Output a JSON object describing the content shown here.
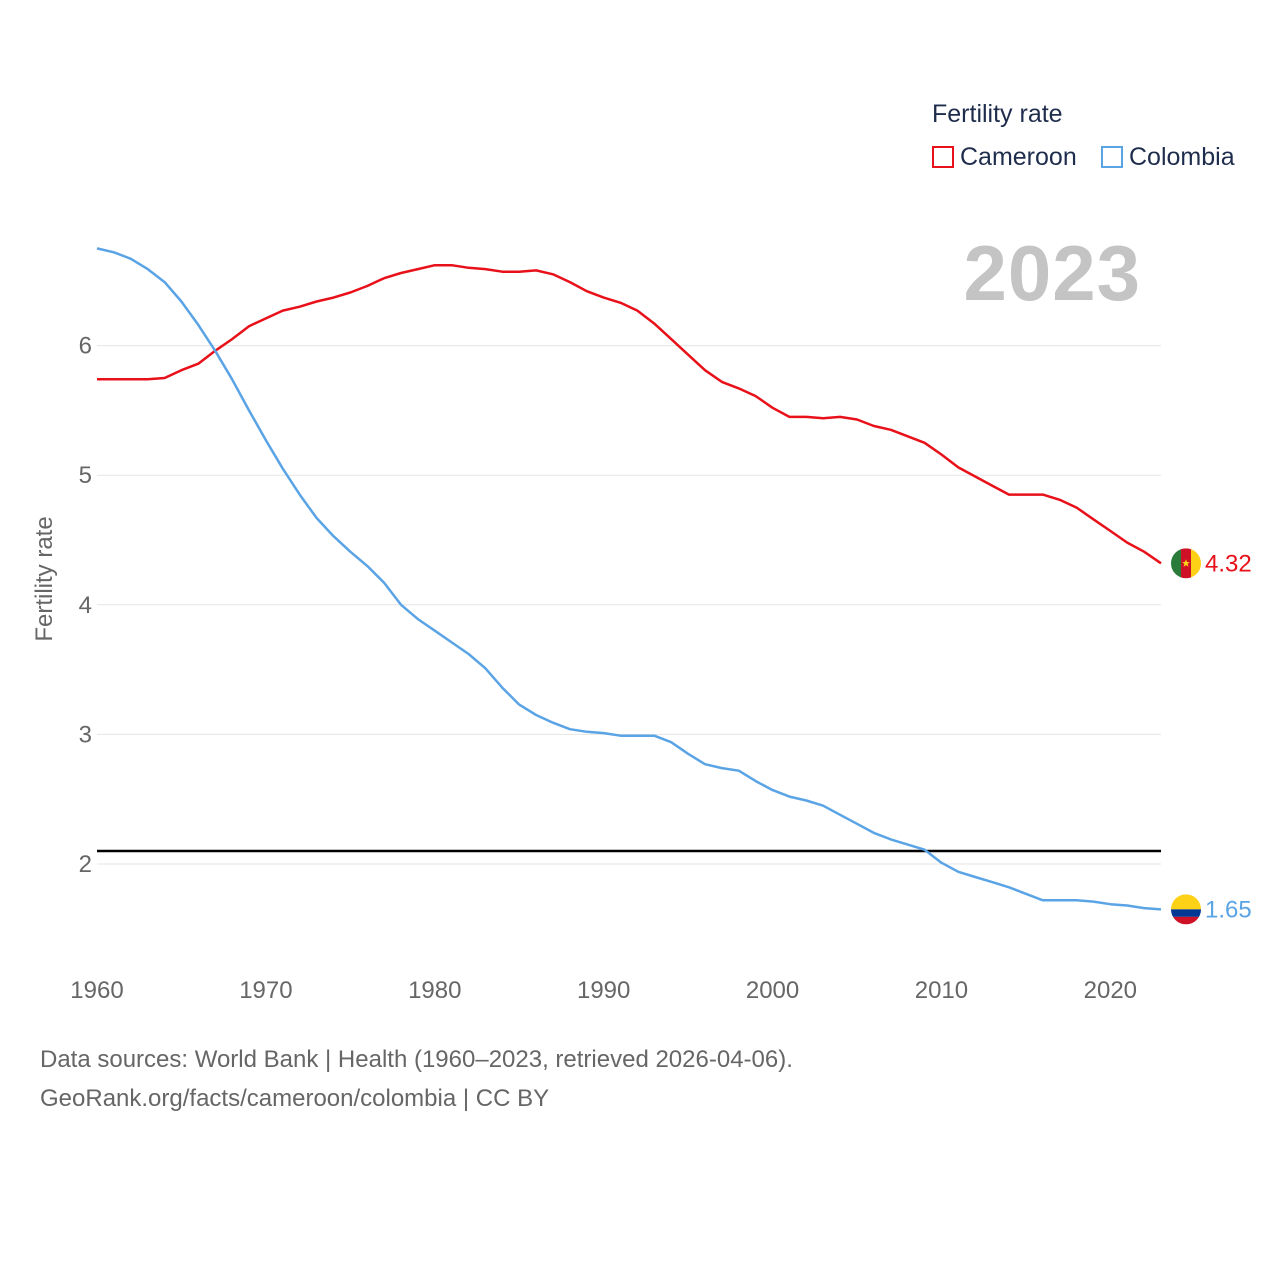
{
  "legend": {
    "title": "Fertility rate",
    "items": [
      {
        "label": "Cameroon",
        "color": "#e8111a"
      },
      {
        "label": "Colombia",
        "color": "#5aa4e6"
      }
    ]
  },
  "current_year": "2023",
  "footer": {
    "line1": "Data sources: World Bank | Health (1960–2023, retrieved 2026-04-06).",
    "line2": "GeoRank.org/facts/cameroon/colombia | CC BY"
  },
  "chart_data": {
    "type": "line",
    "ylabel": "Fertility rate",
    "xlabel": "",
    "xlim": [
      1960,
      2023
    ],
    "ylim": [
      1.4,
      6.8
    ],
    "xticks": [
      1960,
      1970,
      1980,
      1990,
      2000,
      2010,
      2020
    ],
    "yticks": [
      2,
      3,
      4,
      5,
      6
    ],
    "grid": true,
    "reference_line": {
      "y": 2.1,
      "color": "#000000"
    },
    "series": [
      {
        "name": "Cameroon",
        "color": "#e8111a",
        "end_label": "4.32",
        "x": [
          1960,
          1961,
          1962,
          1963,
          1964,
          1965,
          1966,
          1967,
          1968,
          1969,
          1970,
          1971,
          1972,
          1973,
          1974,
          1975,
          1976,
          1977,
          1978,
          1979,
          1980,
          1981,
          1982,
          1983,
          1984,
          1985,
          1986,
          1987,
          1988,
          1989,
          1990,
          1991,
          1992,
          1993,
          1994,
          1995,
          1996,
          1997,
          1998,
          1999,
          2000,
          2001,
          2002,
          2003,
          2004,
          2005,
          2006,
          2007,
          2008,
          2009,
          2010,
          2011,
          2012,
          2013,
          2014,
          2015,
          2016,
          2017,
          2018,
          2019,
          2020,
          2021,
          2022,
          2023
        ],
        "values": [
          5.74,
          5.74,
          5.74,
          5.74,
          5.75,
          5.81,
          5.86,
          5.96,
          6.05,
          6.15,
          6.21,
          6.27,
          6.3,
          6.34,
          6.37,
          6.41,
          6.46,
          6.52,
          6.56,
          6.59,
          6.62,
          6.62,
          6.6,
          6.59,
          6.57,
          6.57,
          6.58,
          6.55,
          6.49,
          6.42,
          6.37,
          6.33,
          6.27,
          6.17,
          6.05,
          5.93,
          5.81,
          5.72,
          5.67,
          5.61,
          5.52,
          5.45,
          5.45,
          5.44,
          5.45,
          5.43,
          5.38,
          5.35,
          5.3,
          5.25,
          5.16,
          5.06,
          4.99,
          4.92,
          4.85,
          4.85,
          4.85,
          4.81,
          4.75,
          4.66,
          4.57,
          4.48,
          4.41,
          4.32
        ]
      },
      {
        "name": "Colombia",
        "color": "#5aa4e6",
        "end_label": "1.65",
        "x": [
          1960,
          1961,
          1962,
          1963,
          1964,
          1965,
          1966,
          1967,
          1968,
          1969,
          1970,
          1971,
          1972,
          1973,
          1974,
          1975,
          1976,
          1977,
          1978,
          1979,
          1980,
          1981,
          1982,
          1983,
          1984,
          1985,
          1986,
          1987,
          1988,
          1989,
          1990,
          1991,
          1992,
          1993,
          1994,
          1995,
          1996,
          1997,
          1998,
          1999,
          2000,
          2001,
          2002,
          2003,
          2004,
          2005,
          2006,
          2007,
          2008,
          2009,
          2010,
          2011,
          2012,
          2013,
          2014,
          2015,
          2016,
          2017,
          2018,
          2019,
          2020,
          2021,
          2022,
          2023
        ],
        "values": [
          6.75,
          6.72,
          6.67,
          6.59,
          6.49,
          6.34,
          6.16,
          5.96,
          5.74,
          5.5,
          5.27,
          5.05,
          4.85,
          4.67,
          4.53,
          4.41,
          4.3,
          4.17,
          4.0,
          3.89,
          3.8,
          3.71,
          3.62,
          3.51,
          3.36,
          3.23,
          3.15,
          3.09,
          3.04,
          3.02,
          3.01,
          2.99,
          2.99,
          2.99,
          2.94,
          2.85,
          2.77,
          2.74,
          2.72,
          2.64,
          2.57,
          2.52,
          2.49,
          2.45,
          2.38,
          2.31,
          2.24,
          2.19,
          2.15,
          2.11,
          2.01,
          1.94,
          1.9,
          1.86,
          1.82,
          1.77,
          1.72,
          1.72,
          1.72,
          1.71,
          1.69,
          1.68,
          1.66,
          1.65
        ]
      }
    ]
  }
}
